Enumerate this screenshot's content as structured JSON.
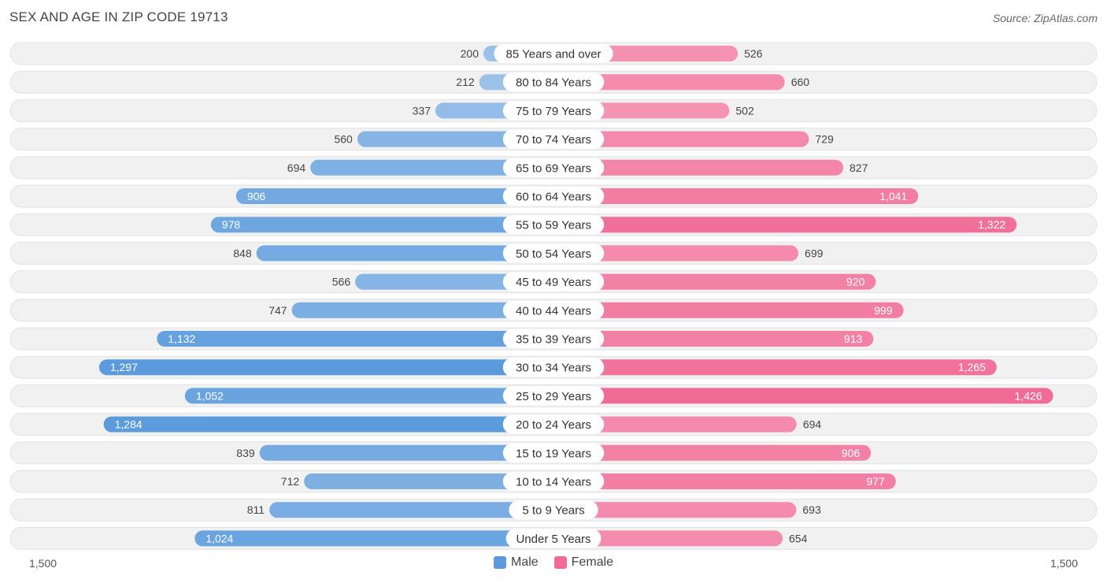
{
  "title": "SEX AND AGE IN ZIP CODE 19713",
  "source": "Source: ZipAtlas.com",
  "legend": {
    "male": "Male",
    "female": "Female"
  },
  "axis": {
    "left_label": "1,500",
    "right_label": "1,500"
  },
  "colors": {
    "male": "#5b9bdc",
    "female": "#f06b96",
    "male_light": "#a7c8ec",
    "female_light": "#f7a8c2"
  },
  "chart_data": {
    "type": "bar",
    "title": "SEX AND AGE IN ZIP CODE 19713",
    "orientation": "horizontal-diverging",
    "categories": [
      "85 Years and over",
      "80 to 84 Years",
      "75 to 79 Years",
      "70 to 74 Years",
      "65 to 69 Years",
      "60 to 64 Years",
      "55 to 59 Years",
      "50 to 54 Years",
      "45 to 49 Years",
      "40 to 44 Years",
      "35 to 39 Years",
      "30 to 34 Years",
      "25 to 29 Years",
      "20 to 24 Years",
      "15 to 19 Years",
      "10 to 14 Years",
      "5 to 9 Years",
      "Under 5 Years"
    ],
    "series": [
      {
        "name": "Male",
        "values": [
          200,
          212,
          337,
          560,
          694,
          906,
          978,
          848,
          566,
          747,
          1132,
          1297,
          1052,
          1284,
          839,
          712,
          811,
          1024
        ],
        "labels": [
          "200",
          "212",
          "337",
          "560",
          "694",
          "906",
          "978",
          "848",
          "566",
          "747",
          "1,132",
          "1,297",
          "1,052",
          "1,284",
          "839",
          "712",
          "811",
          "1,024"
        ]
      },
      {
        "name": "Female",
        "values": [
          526,
          660,
          502,
          729,
          827,
          1041,
          1322,
          699,
          920,
          999,
          913,
          1265,
          1426,
          694,
          906,
          977,
          693,
          654
        ],
        "labels": [
          "526",
          "660",
          "502",
          "729",
          "827",
          "1,041",
          "1,322",
          "699",
          "920",
          "999",
          "913",
          "1,265",
          "1,426",
          "694",
          "906",
          "977",
          "693",
          "654"
        ]
      }
    ],
    "xlim": [
      -1500,
      1500
    ],
    "legend_position": "bottom-center"
  }
}
